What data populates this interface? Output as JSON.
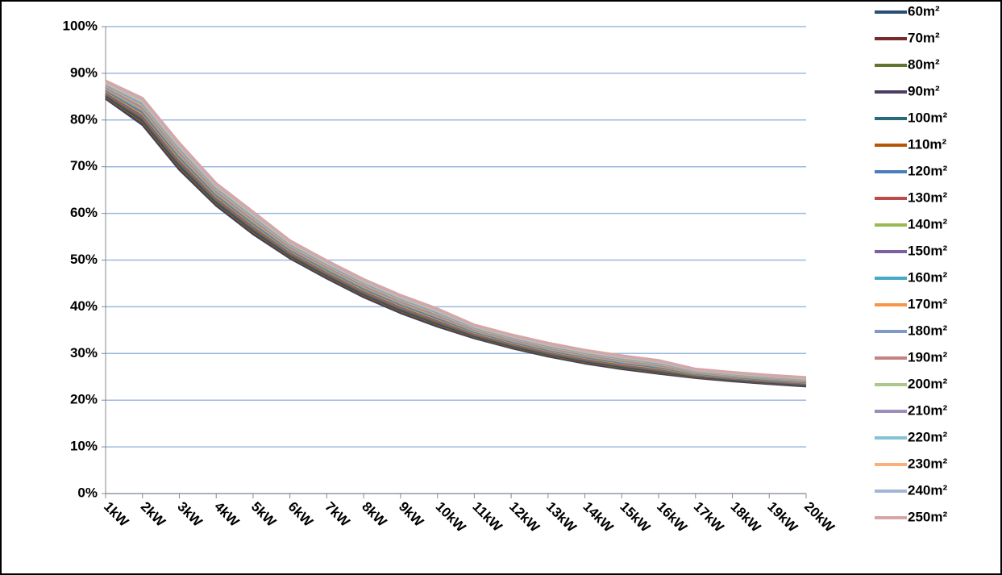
{
  "chart_data": {
    "type": "line",
    "categories": [
      "1kW",
      "2kW",
      "3kW",
      "4kW",
      "5kW",
      "6kW",
      "7kW",
      "8kW",
      "9kW",
      "10kW",
      "11kW",
      "12kW",
      "13kW",
      "14kW",
      "15kW",
      "16kW",
      "17kW",
      "18kW",
      "19kW",
      "20kW"
    ],
    "ylim": [
      0,
      100
    ],
    "yticks": [
      {
        "value": 0,
        "label": "0%"
      },
      {
        "value": 10,
        "label": "10%"
      },
      {
        "value": 20,
        "label": "20%"
      },
      {
        "value": 30,
        "label": "30%"
      },
      {
        "value": 40,
        "label": "40%"
      },
      {
        "value": 50,
        "label": "50%"
      },
      {
        "value": 60,
        "label": "60%"
      },
      {
        "value": 70,
        "label": "70%"
      },
      {
        "value": 80,
        "label": "80%"
      },
      {
        "value": 90,
        "label": "90%"
      },
      {
        "value": 100,
        "label": "100%"
      }
    ],
    "grid": true,
    "legend": "right",
    "series": [
      {
        "name": "60m²",
        "color": "#2c4d75",
        "values": [
          84.6,
          79,
          69.4,
          61.7,
          55.6,
          50.4,
          46.1,
          42.1,
          38.7,
          35.8,
          33.3,
          31.2,
          29.4,
          27.9,
          26.7,
          25.7,
          24.8,
          24.1,
          23.5,
          23
        ]
      },
      {
        "name": "70m²",
        "color": "#772c2a",
        "values": [
          84.8,
          79.3,
          69.7,
          61.95,
          55.85,
          50.6,
          46.3,
          42.3,
          38.9,
          36,
          33.45,
          31.35,
          29.55,
          28.05,
          26.85,
          25.85,
          24.9,
          24.2,
          23.6,
          23.1
        ]
      },
      {
        "name": "80m²",
        "color": "#5f7530",
        "values": [
          85,
          79.6,
          70,
          62.2,
          56.1,
          50.8,
          46.5,
          42.5,
          39.1,
          36.2,
          33.6,
          31.5,
          29.7,
          28.2,
          27,
          26,
          25,
          24.3,
          23.7,
          23.2
        ]
      },
      {
        "name": "90m²",
        "color": "#4d3b62",
        "values": [
          85.2,
          79.9,
          70.3,
          62.45,
          56.35,
          51,
          46.7,
          42.7,
          39.3,
          36.4,
          33.75,
          31.65,
          29.85,
          28.35,
          27.15,
          26.15,
          25.1,
          24.4,
          23.8,
          23.3
        ]
      },
      {
        "name": "100m²",
        "color": "#276a7c",
        "values": [
          85.4,
          80.2,
          70.6,
          62.7,
          56.6,
          51.2,
          46.9,
          42.9,
          39.5,
          36.6,
          33.9,
          31.8,
          30,
          28.5,
          27.3,
          26.3,
          25.2,
          24.5,
          23.9,
          23.4
        ]
      },
      {
        "name": "110m²",
        "color": "#b65708",
        "values": [
          85.6,
          80.5,
          70.9,
          62.95,
          56.85,
          51.4,
          47.1,
          43.1,
          39.7,
          36.8,
          34.05,
          31.95,
          30.15,
          28.65,
          27.45,
          26.45,
          25.3,
          24.6,
          24,
          23.5
        ]
      },
      {
        "name": "120m²",
        "color": "#4a7ebb",
        "values": [
          85.8,
          80.8,
          71.2,
          63.2,
          57.1,
          51.6,
          47.3,
          43.3,
          39.9,
          37,
          34.2,
          32.1,
          30.3,
          28.8,
          27.6,
          26.6,
          25.4,
          24.7,
          24.1,
          23.6
        ]
      },
      {
        "name": "130m²",
        "color": "#be4b48",
        "values": [
          86,
          81.1,
          71.5,
          63.45,
          57.35,
          51.8,
          47.5,
          43.5,
          40.1,
          37.2,
          34.35,
          32.25,
          30.45,
          28.95,
          27.75,
          26.75,
          25.5,
          24.8,
          24.2,
          23.7
        ]
      },
      {
        "name": "140m²",
        "color": "#98b954",
        "values": [
          86.2,
          81.4,
          71.8,
          63.7,
          57.6,
          52,
          47.7,
          43.7,
          40.3,
          37.4,
          34.5,
          32.4,
          30.6,
          29.1,
          27.9,
          26.9,
          25.6,
          24.9,
          24.3,
          23.8
        ]
      },
      {
        "name": "150m²",
        "color": "#7d60a0",
        "values": [
          86.4,
          81.7,
          72.1,
          63.95,
          57.85,
          52.2,
          47.9,
          43.9,
          40.5,
          37.6,
          34.65,
          32.55,
          30.75,
          29.25,
          28.05,
          27.05,
          25.7,
          25,
          24.4,
          23.9
        ]
      },
      {
        "name": "160m²",
        "color": "#46aac5",
        "values": [
          86.6,
          82,
          72.4,
          64.2,
          58.1,
          52.4,
          48.1,
          44.1,
          40.7,
          37.8,
          34.8,
          32.7,
          30.9,
          29.4,
          28.2,
          27.2,
          25.8,
          25.1,
          24.5,
          24
        ]
      },
      {
        "name": "170m²",
        "color": "#f79646",
        "values": [
          86.8,
          82.3,
          72.7,
          64.45,
          58.35,
          52.6,
          48.3,
          44.3,
          40.9,
          38,
          34.95,
          32.85,
          31.05,
          29.55,
          28.35,
          27.35,
          25.9,
          25.2,
          24.6,
          24.1
        ]
      },
      {
        "name": "180m²",
        "color": "#7f9ac5",
        "values": [
          87,
          82.6,
          73,
          64.7,
          58.6,
          52.8,
          48.5,
          44.5,
          41.1,
          38.2,
          35.1,
          33,
          31.2,
          29.7,
          28.5,
          27.5,
          26,
          25.3,
          24.7,
          24.2
        ]
      },
      {
        "name": "190m²",
        "color": "#c48382",
        "values": [
          87.2,
          82.9,
          73.3,
          64.95,
          58.85,
          53,
          48.7,
          44.7,
          41.3,
          38.4,
          35.25,
          33.15,
          31.35,
          29.85,
          28.65,
          27.65,
          26.1,
          25.4,
          24.8,
          24.3
        ]
      },
      {
        "name": "200m²",
        "color": "#acc68b",
        "values": [
          87.4,
          83.2,
          73.6,
          65.2,
          59.1,
          53.2,
          48.9,
          44.9,
          41.5,
          38.6,
          35.4,
          33.3,
          31.5,
          30,
          28.8,
          27.8,
          26.2,
          25.5,
          24.9,
          24.4
        ]
      },
      {
        "name": "210m²",
        "color": "#9e8db7",
        "values": [
          87.6,
          83.5,
          73.9,
          65.45,
          59.35,
          53.4,
          49.1,
          45.1,
          41.7,
          38.8,
          35.55,
          33.45,
          31.65,
          30.15,
          28.95,
          27.95,
          26.3,
          25.6,
          25,
          24.5
        ]
      },
      {
        "name": "220m²",
        "color": "#84c2d4",
        "values": [
          87.8,
          83.8,
          74.2,
          65.7,
          59.6,
          53.6,
          49.3,
          45.3,
          41.9,
          39,
          35.7,
          33.6,
          31.8,
          30.3,
          29.1,
          28.1,
          26.4,
          25.7,
          25.1,
          24.6
        ]
      },
      {
        "name": "230m²",
        "color": "#f9b07c",
        "values": [
          88,
          84.1,
          74.5,
          65.95,
          59.85,
          53.8,
          49.5,
          45.5,
          42.1,
          39.2,
          35.85,
          33.75,
          31.95,
          30.45,
          29.25,
          28.25,
          26.5,
          25.8,
          25.2,
          24.7
        ]
      },
      {
        "name": "240m²",
        "color": "#a5b5d6",
        "values": [
          88.2,
          84.4,
          74.8,
          66.2,
          60.1,
          54,
          49.7,
          45.7,
          42.3,
          39.4,
          36,
          33.9,
          32.1,
          30.6,
          29.4,
          28.4,
          26.6,
          25.9,
          25.3,
          24.8
        ]
      },
      {
        "name": "250m²",
        "color": "#d6a6a5",
        "values": [
          88.4,
          84.7,
          75.1,
          66.45,
          60.35,
          54.2,
          49.9,
          45.9,
          42.5,
          39.6,
          36.15,
          34.05,
          32.25,
          30.75,
          29.55,
          28.55,
          26.7,
          26,
          25.4,
          24.9
        ]
      }
    ]
  }
}
